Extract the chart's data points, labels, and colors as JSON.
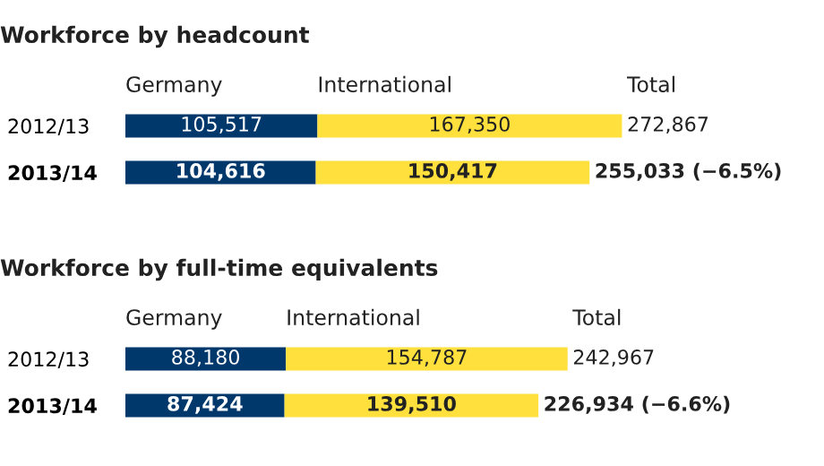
{
  "chart_data": [
    {
      "type": "bar",
      "orientation": "horizontal",
      "stacked": true,
      "title": "Workforce by headcount",
      "categories": [
        "2012/13",
        "2013/14"
      ],
      "tick_labels": "y",
      "series": [
        {
          "name": "Germany",
          "color": "#00386c",
          "values": [
            105517,
            104616
          ],
          "value_labels": [
            "105,517",
            "104,616"
          ]
        },
        {
          "name": "International",
          "color": "#ffe03c",
          "values": [
            167350,
            150417
          ],
          "value_labels": [
            "167,350",
            "150,417"
          ]
        }
      ],
      "totals": [
        "272,867",
        "255,033 (−6.5%)"
      ],
      "annotations": [
        "Total"
      ]
    },
    {
      "type": "bar",
      "orientation": "horizontal",
      "stacked": true,
      "title": "Workforce by full-time equivalents",
      "categories": [
        "2012/13",
        "2013/14"
      ],
      "tick_labels": "y",
      "series": [
        {
          "name": "Germany",
          "color": "#00386c",
          "values": [
            88180,
            87424
          ],
          "value_labels": [
            "88,180",
            "87,424"
          ]
        },
        {
          "name": "International",
          "color": "#ffe03c",
          "values": [
            154787,
            139510
          ],
          "value_labels": [
            "154,787",
            "139,510"
          ]
        }
      ],
      "totals": [
        "242,967",
        "226,934 (−6.6%)"
      ],
      "annotations": [
        "Total"
      ]
    }
  ]
}
